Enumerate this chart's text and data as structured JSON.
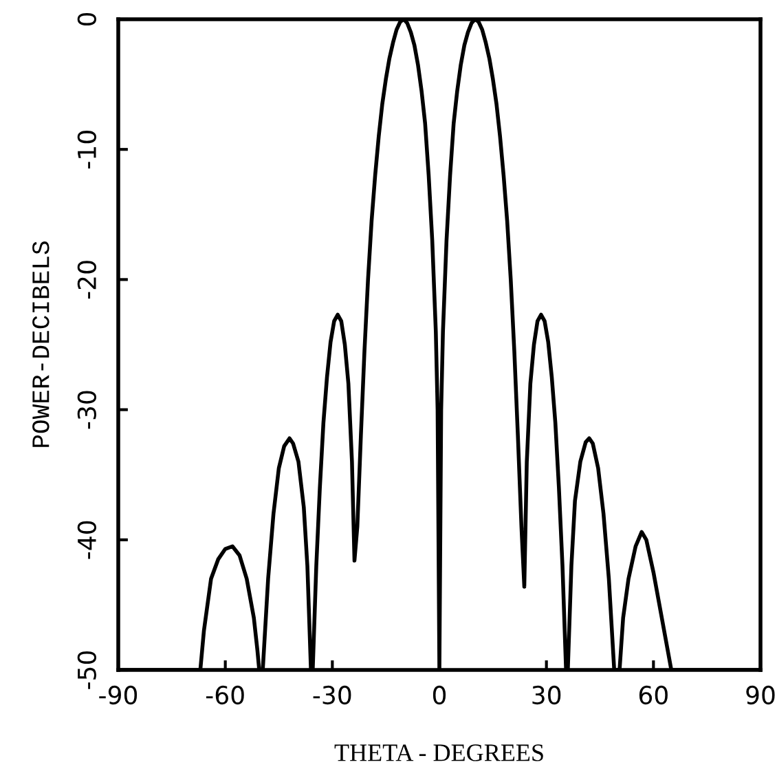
{
  "chart_data": {
    "type": "line",
    "xlabel": "THETA - DEGREES",
    "ylabel": "POWER-DECIBELS",
    "xlim": [
      -90,
      90
    ],
    "xticks": [
      -90,
      -60,
      -30,
      0,
      30,
      60,
      90
    ],
    "ylim": [
      -50,
      0
    ],
    "yticks": [
      0,
      -10,
      -20,
      -30,
      -40,
      -50
    ],
    "grid": false,
    "marker": "none",
    "line_style": "solid",
    "series": [
      {
        "color": "#000000",
        "x": [
          -90,
          -67,
          -66,
          -64,
          -62,
          -60,
          -58,
          -56,
          -54,
          -52,
          -51,
          -50.5,
          -49.5,
          -48,
          -46.5,
          -45,
          -43.5,
          -42,
          -41,
          -39.5,
          -38,
          -37,
          -36.5,
          -36,
          -35.5,
          -34.5,
          -33.5,
          -32.5,
          -31.5,
          -30.5,
          -29.5,
          -28.5,
          -27.5,
          -26.5,
          -25.5,
          -24.5,
          -23.8,
          -23,
          -22,
          -21,
          -20,
          -19,
          -18,
          -17,
          -16,
          -15,
          -14,
          -13,
          -12,
          -11,
          -10,
          -9,
          -8,
          -7,
          -6,
          -5,
          -4,
          -3,
          -2,
          -1,
          -0.5,
          0,
          0.5,
          1,
          2,
          3,
          4,
          5,
          6,
          7,
          8,
          9,
          10,
          11,
          12,
          13,
          14,
          15,
          16,
          17,
          18,
          19,
          20,
          21,
          22,
          23,
          23.8,
          24.5,
          25.5,
          26.5,
          27.5,
          28.5,
          29.5,
          30.5,
          31.5,
          32.5,
          33.5,
          34.5,
          35.5,
          36,
          37,
          38,
          39.5,
          41,
          42,
          43,
          44.5,
          46,
          47.5,
          49,
          50.5,
          51.5,
          53,
          55,
          56.7,
          58,
          60,
          62,
          64,
          65,
          90
        ],
        "values": [
          -50,
          -50,
          -47,
          -43,
          -41.5,
          -40.7,
          -40.5,
          -41.2,
          -43,
          -46,
          -48.5,
          -50,
          -50,
          -43,
          -38,
          -34.5,
          -32.8,
          -32.2,
          -32.6,
          -34,
          -37.5,
          -42,
          -46,
          -50,
          -50,
          -42,
          -36,
          -31,
          -27.5,
          -24.8,
          -23.2,
          -22.7,
          -23.2,
          -25,
          -28,
          -34,
          -41.6,
          -39,
          -32,
          -25.5,
          -20,
          -15.5,
          -12,
          -9,
          -6.5,
          -4.6,
          -3,
          -1.8,
          -0.8,
          -0.2,
          0,
          -0.3,
          -1,
          -2,
          -3.5,
          -5.5,
          -8,
          -12,
          -17,
          -24,
          -30,
          -50,
          -30,
          -24,
          -17,
          -12,
          -8,
          -5.5,
          -3.5,
          -2,
          -1,
          -0.3,
          0,
          -0.2,
          -0.8,
          -1.8,
          -3,
          -4.6,
          -6.5,
          -9,
          -12,
          -15.5,
          -20,
          -25.5,
          -32,
          -39,
          -43.6,
          -34,
          -28,
          -25,
          -23.2,
          -22.7,
          -23.2,
          -24.8,
          -27.5,
          -31,
          -36,
          -42,
          -50,
          -50,
          -42,
          -37,
          -34,
          -32.5,
          -32.2,
          -32.6,
          -34.5,
          -38,
          -43,
          -50,
          -50,
          -46,
          -43,
          -40.5,
          -39.4,
          -40,
          -42.5,
          -45.5,
          -48.5,
          -50,
          -50
        ]
      }
    ]
  }
}
